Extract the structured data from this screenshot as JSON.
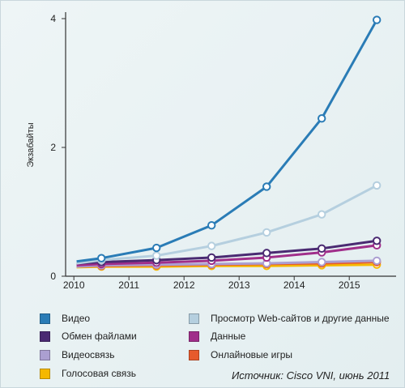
{
  "chart_data": {
    "type": "line",
    "ylabel": "Экзабайты",
    "source": "Источник: Cisco VNI, июнь 2011",
    "x_ticks": [
      "2010",
      "2011",
      "2012",
      "2013",
      "2014",
      "2015"
    ],
    "y_ticks": [
      0,
      2,
      4
    ],
    "ylim": [
      0,
      4.05
    ],
    "x": [
      2010.5,
      2011.5,
      2012.5,
      2013.5,
      2014.5,
      2015.5
    ],
    "series": [
      {
        "name": "Видео",
        "color": "#2a7cb6",
        "line_start": 0.23,
        "values": [
          0.28,
          0.44,
          0.79,
          1.39,
          2.45,
          3.98
        ]
      },
      {
        "name": "Просмотр Web-сайтов и другие данные",
        "color": "#b5cfdf",
        "line_start": 0.2,
        "values": [
          0.25,
          0.32,
          0.47,
          0.68,
          0.96,
          1.41
        ]
      },
      {
        "name": "Обмен файлами",
        "color": "#4a2a72",
        "line_start": 0.2,
        "values": [
          0.22,
          0.25,
          0.29,
          0.36,
          0.43,
          0.55
        ]
      },
      {
        "name": "Данные",
        "color": "#a02e8a",
        "line_start": 0.17,
        "values": [
          0.19,
          0.21,
          0.24,
          0.29,
          0.37,
          0.48
        ]
      },
      {
        "name": "Видеосвязь",
        "color": "#ab9fd1",
        "line_start": 0.15,
        "values": [
          0.17,
          0.18,
          0.19,
          0.2,
          0.22,
          0.24
        ]
      },
      {
        "name": "Онлайновые игры",
        "color": "#e65a2d",
        "line_start": 0.15,
        "values": [
          0.16,
          0.17,
          0.18,
          0.19,
          0.2,
          0.22
        ]
      },
      {
        "name": "Голосовая связь",
        "color": "#f5b800",
        "line_start": 0.14,
        "values": [
          0.15,
          0.15,
          0.16,
          0.16,
          0.17,
          0.18
        ]
      }
    ]
  },
  "legend": [
    {
      "label": "Видео",
      "color": "#2a7cb6"
    },
    {
      "label": "Обмен файлами",
      "color": "#4a2a72"
    },
    {
      "label": "Видеосвязь",
      "color": "#ab9fd1"
    },
    {
      "label": "Голосовая связь",
      "color": "#f5b800"
    },
    {
      "label": "Просмотр Web-сайтов и другие данные",
      "color": "#b5cfdf"
    },
    {
      "label": "Данные",
      "color": "#a02e8a"
    },
    {
      "label": "Онлайновые игры",
      "color": "#e65a2d"
    }
  ]
}
